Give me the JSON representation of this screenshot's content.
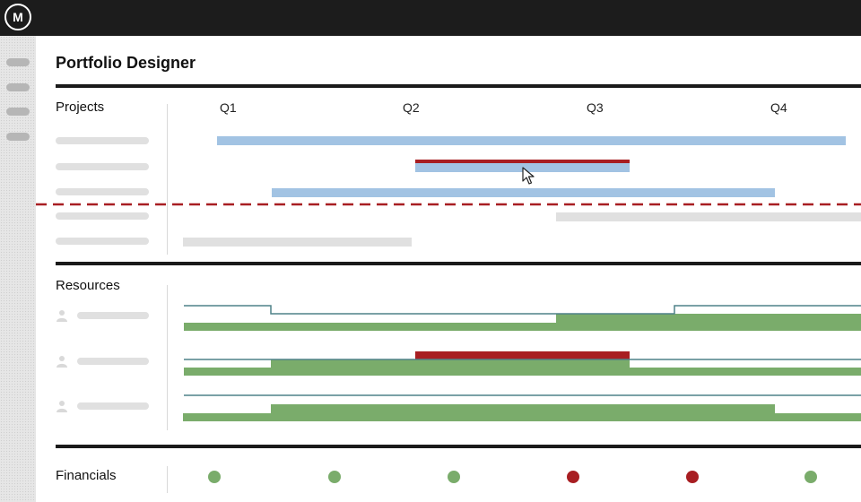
{
  "header": {
    "logo_icon": "brand-logo-icon",
    "logo_text": "M"
  },
  "sidebar": {
    "items": [
      {
        "icon": "menu-pill-icon"
      },
      {
        "icon": "menu-pill-icon"
      },
      {
        "icon": "menu-pill-icon"
      },
      {
        "icon": "menu-pill-icon"
      }
    ]
  },
  "page": {
    "title": "Portfolio Designer"
  },
  "sections": {
    "projects": "Projects",
    "resources": "Resources",
    "financials": "Financials"
  },
  "timeline": {
    "quarters": [
      "Q1",
      "Q2",
      "Q3",
      "Q4"
    ]
  },
  "colors": {
    "project_bar": "#a2c3e3",
    "conflict": "#a81e22",
    "allocation": "#7aac6b",
    "capacity_line": "#4f8288",
    "placeholder": "#e0e0e0",
    "status_ok": "#7aac6b",
    "status_bad": "#a81e22"
  },
  "financials": {
    "statuses": [
      "ok",
      "ok",
      "ok",
      "bad",
      "bad",
      "ok"
    ]
  }
}
